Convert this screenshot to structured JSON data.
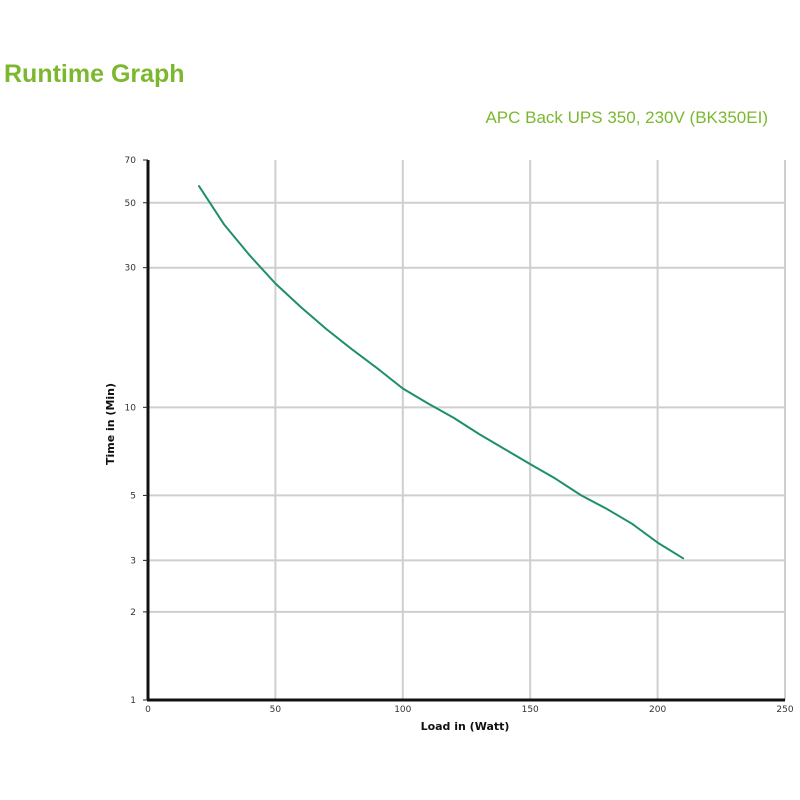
{
  "page": {
    "title": "Runtime Graph",
    "subtitle": "APC Back UPS 350, 230V (BK350EI)"
  },
  "chart_data": {
    "type": "line",
    "title": "",
    "xlabel": "Load in (Watt)",
    "ylabel": "Time in (Min)",
    "xlim": [
      0,
      250
    ],
    "ylim": [
      1,
      70
    ],
    "y_scale": "log",
    "x_ticks": [
      0,
      50,
      100,
      150,
      200,
      250
    ],
    "x_tick_labels": [
      "0",
      "50",
      "100",
      "150",
      "200",
      "250"
    ],
    "y_ticks": [
      1,
      2,
      3,
      5,
      10,
      30,
      50,
      70
    ],
    "y_tick_labels": [
      "1",
      "2",
      "3",
      "5",
      "10",
      "30",
      "50",
      "70"
    ],
    "grid": true,
    "line_color": "#1f8f6a",
    "series": [
      {
        "x": [
          20,
          30,
          40,
          50,
          60,
          70,
          80,
          90,
          100,
          110,
          120,
          130,
          140,
          150,
          160,
          170,
          180,
          190,
          200,
          210
        ],
        "y": [
          57,
          42,
          33,
          26.5,
          22,
          18.5,
          15.8,
          13.6,
          11.6,
          10.3,
          9.2,
          8.1,
          7.2,
          6.4,
          5.7,
          5.0,
          4.5,
          4.0,
          3.45,
          3.05
        ]
      }
    ]
  }
}
